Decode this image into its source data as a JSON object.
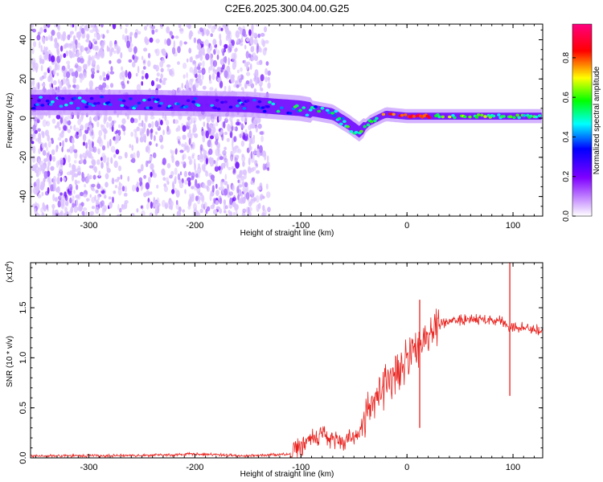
{
  "title": "C2E6.2025.300.04.00.G25",
  "chart_data": [
    {
      "type": "heatmap",
      "name": "spectrogram",
      "xlabel": "Height of straight line (km)",
      "ylabel": "Frequency (Hz)",
      "xlim": [
        -355,
        128
      ],
      "ylim": [
        -50,
        48
      ],
      "xticks": [
        -300,
        -200,
        -100,
        0,
        100
      ],
      "yticks": [
        -40,
        -20,
        0,
        20,
        40
      ],
      "colorbar": {
        "label": "Normalized spectral amplitude",
        "range": [
          0.0,
          0.97
        ],
        "ticks": [
          0.0,
          0.2,
          0.4,
          0.6,
          0.8
        ],
        "colormap": [
          "#ffffff",
          "#d9b3ff",
          "#8000ff",
          "#0000ff",
          "#00ffff",
          "#00ff00",
          "#ffff00",
          "#ff0000",
          "#ff0080"
        ]
      },
      "features": {
        "noise_region_x": [
          -355,
          -130
        ],
        "dense_noise_bands_x": [
          [
            -355,
            -285
          ],
          [
            -205,
            -140
          ]
        ],
        "band_center_freq_at_x": [
          [
            -350,
            8
          ],
          [
            -250,
            8
          ],
          [
            -150,
            7
          ],
          [
            -100,
            5
          ],
          [
            -70,
            2
          ],
          [
            -55,
            -3
          ],
          [
            -45,
            -7
          ],
          [
            -35,
            -2
          ],
          [
            -20,
            2
          ],
          [
            0,
            1
          ],
          [
            125,
            1
          ]
        ],
        "peak_amplitude_x": [
          -20,
          20
        ]
      }
    },
    {
      "type": "line",
      "name": "snr",
      "xlabel": "Height of straight line (km)",
      "ylabel": "SNR (10 * v/v)",
      "ylabel_multiplier": "(x10",
      "ylabel_multiplier_exp": "4",
      "xlim": [
        -355,
        128
      ],
      "ylim": [
        0,
        1.95
      ],
      "xticks": [
        -300,
        -200,
        -100,
        0,
        100
      ],
      "yticks": [
        0.0,
        0.5,
        1.0,
        1.5
      ],
      "ytick_labels": [
        "0.0",
        "0.5",
        "1.0",
        "1.5"
      ],
      "color": "#e8221e",
      "series": [
        {
          "name": "SNR",
          "x": [
            -355,
            -300,
            -220,
            -200,
            -150,
            -110,
            -100,
            -90,
            -80,
            -70,
            -60,
            -50,
            -45,
            -40,
            -30,
            -20,
            -10,
            0,
            10,
            20,
            30,
            40,
            60,
            80,
            90,
            95,
            100,
            110,
            128
          ],
          "y": [
            0.02,
            0.02,
            0.03,
            0.04,
            0.02,
            0.04,
            0.12,
            0.2,
            0.22,
            0.2,
            0.18,
            0.2,
            0.26,
            0.38,
            0.58,
            0.72,
            0.85,
            0.98,
            1.1,
            1.25,
            1.33,
            1.37,
            1.38,
            1.38,
            1.37,
            1.3,
            1.32,
            1.3,
            1.27
          ]
        }
      ],
      "spikes": [
        {
          "x": 12,
          "y": 1.58,
          "min": 0.3
        },
        {
          "x": 97,
          "y": 1.95,
          "min": 0.62
        }
      ]
    }
  ]
}
